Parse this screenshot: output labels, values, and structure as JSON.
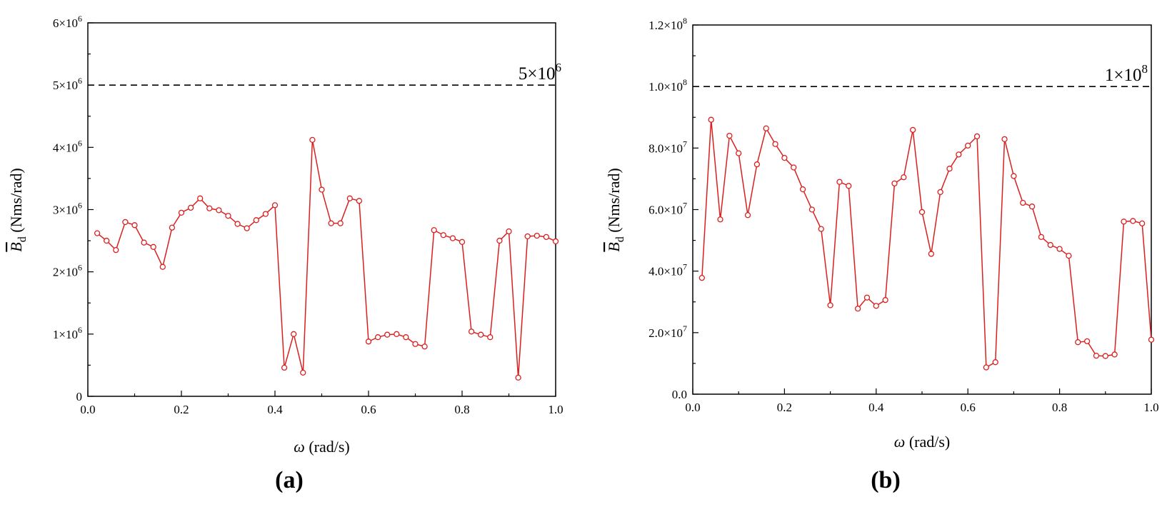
{
  "colors": {
    "series": "#d9201f",
    "axis": "#000000",
    "reference_line": "#000000"
  },
  "chart_data": [
    {
      "type": "line",
      "panel_label": "(a)",
      "xlabel_symbol": "ω",
      "xlabel_unit": " (rad/s)",
      "ylabel_symbol": "B",
      "ylabel_sub": "d",
      "ylabel_unit": " (Nms/rad)",
      "xlim": [
        0.0,
        1.0
      ],
      "ylim": [
        0,
        6000000
      ],
      "x_ticks": [
        {
          "value": 0.0,
          "label": "0.0"
        },
        {
          "value": 0.2,
          "label": "0.2"
        },
        {
          "value": 0.4,
          "label": "0.4"
        },
        {
          "value": 0.6,
          "label": "0.6"
        },
        {
          "value": 0.8,
          "label": "0.8"
        },
        {
          "value": 1.0,
          "label": "1.0"
        }
      ],
      "y_ticks": [
        {
          "value": 0,
          "mant": "0",
          "exp": ""
        },
        {
          "value": 1000000,
          "mant": "1×10",
          "exp": "6"
        },
        {
          "value": 2000000,
          "mant": "2×10",
          "exp": "6"
        },
        {
          "value": 3000000,
          "mant": "3×10",
          "exp": "6"
        },
        {
          "value": 4000000,
          "mant": "4×10",
          "exp": "6"
        },
        {
          "value": 5000000,
          "mant": "5×10",
          "exp": "6"
        },
        {
          "value": 6000000,
          "mant": "6×10",
          "exp": "6"
        }
      ],
      "reference_line": {
        "value": 5000000,
        "mant": "5×10",
        "exp": "6"
      },
      "series": [
        {
          "x": [
            0.02,
            0.04,
            0.06,
            0.08,
            0.1,
            0.12,
            0.14,
            0.16,
            0.18,
            0.2,
            0.22,
            0.24,
            0.26,
            0.28,
            0.3,
            0.32,
            0.34,
            0.36,
            0.38,
            0.4,
            0.42,
            0.44,
            0.46,
            0.48,
            0.5,
            0.52,
            0.54,
            0.56,
            0.58,
            0.6,
            0.62,
            0.64,
            0.66,
            0.68,
            0.7,
            0.72,
            0.74,
            0.76,
            0.78,
            0.8,
            0.82,
            0.84,
            0.86,
            0.88,
            0.9,
            0.92,
            0.94,
            0.96,
            0.98,
            1.0
          ],
          "y": [
            2620000,
            2500000,
            2350000,
            2800000,
            2750000,
            2470000,
            2400000,
            2080000,
            2710000,
            2950000,
            3030000,
            3180000,
            3020000,
            2990000,
            2900000,
            2770000,
            2700000,
            2830000,
            2930000,
            3070000,
            460000,
            1000000,
            380000,
            4120000,
            3320000,
            2780000,
            2780000,
            3180000,
            3140000,
            880000,
            950000,
            990000,
            1000000,
            950000,
            840000,
            800000,
            2670000,
            2590000,
            2540000,
            2480000,
            1040000,
            990000,
            950000,
            2500000,
            2650000,
            300000,
            2570000,
            2580000,
            2560000,
            2490000
          ]
        }
      ]
    },
    {
      "type": "line",
      "panel_label": "(b)",
      "xlabel_symbol": "ω",
      "xlabel_unit": " (rad/s)",
      "ylabel_symbol": "B",
      "ylabel_sub": "d",
      "ylabel_unit": " (Nms/rad)",
      "xlim": [
        0.0,
        1.0
      ],
      "ylim": [
        0,
        120000000
      ],
      "x_ticks": [
        {
          "value": 0.0,
          "label": "0.0"
        },
        {
          "value": 0.2,
          "label": "0.2"
        },
        {
          "value": 0.4,
          "label": "0.4"
        },
        {
          "value": 0.6,
          "label": "0.6"
        },
        {
          "value": 0.8,
          "label": "0.8"
        },
        {
          "value": 1.0,
          "label": "1.0"
        }
      ],
      "y_ticks": [
        {
          "value": 0,
          "mant": "0.0",
          "exp": ""
        },
        {
          "value": 20000000,
          "mant": "2.0×10",
          "exp": "7"
        },
        {
          "value": 40000000,
          "mant": "4.0×10",
          "exp": "7"
        },
        {
          "value": 60000000,
          "mant": "6.0×10",
          "exp": "7"
        },
        {
          "value": 80000000,
          "mant": "8.0×10",
          "exp": "7"
        },
        {
          "value": 100000000,
          "mant": "1.0×10",
          "exp": "8"
        },
        {
          "value": 120000000,
          "mant": "1.2×10",
          "exp": "8"
        }
      ],
      "reference_line": {
        "value": 100000000,
        "mant": "1×10",
        "exp": "8"
      },
      "series": [
        {
          "x": [
            0.02,
            0.04,
            0.06,
            0.08,
            0.1,
            0.12,
            0.14,
            0.16,
            0.18,
            0.2,
            0.22,
            0.24,
            0.26,
            0.28,
            0.3,
            0.32,
            0.34,
            0.36,
            0.38,
            0.4,
            0.42,
            0.44,
            0.46,
            0.48,
            0.5,
            0.52,
            0.54,
            0.56,
            0.58,
            0.6,
            0.62,
            0.64,
            0.66,
            0.68,
            0.7,
            0.72,
            0.74,
            0.76,
            0.78,
            0.8,
            0.82,
            0.84,
            0.86,
            0.88,
            0.9,
            0.92,
            0.94,
            0.96,
            0.98,
            1.0
          ],
          "y": [
            37800000,
            89200000,
            56800000,
            84000000,
            78300000,
            58200000,
            74700000,
            86400000,
            81300000,
            76800000,
            73700000,
            66600000,
            60000000,
            53700000,
            28900000,
            69000000,
            67700000,
            27800000,
            31400000,
            28700000,
            30600000,
            68500000,
            70500000,
            85900000,
            59200000,
            45600000,
            65700000,
            73300000,
            77900000,
            80800000,
            83800000,
            8700000,
            10400000,
            82900000,
            70900000,
            62200000,
            61000000,
            51100000,
            48500000,
            47200000,
            45000000,
            16900000,
            17200000,
            12500000,
            12400000,
            12900000,
            56100000,
            56300000,
            55500000,
            17700000
          ]
        }
      ]
    }
  ]
}
